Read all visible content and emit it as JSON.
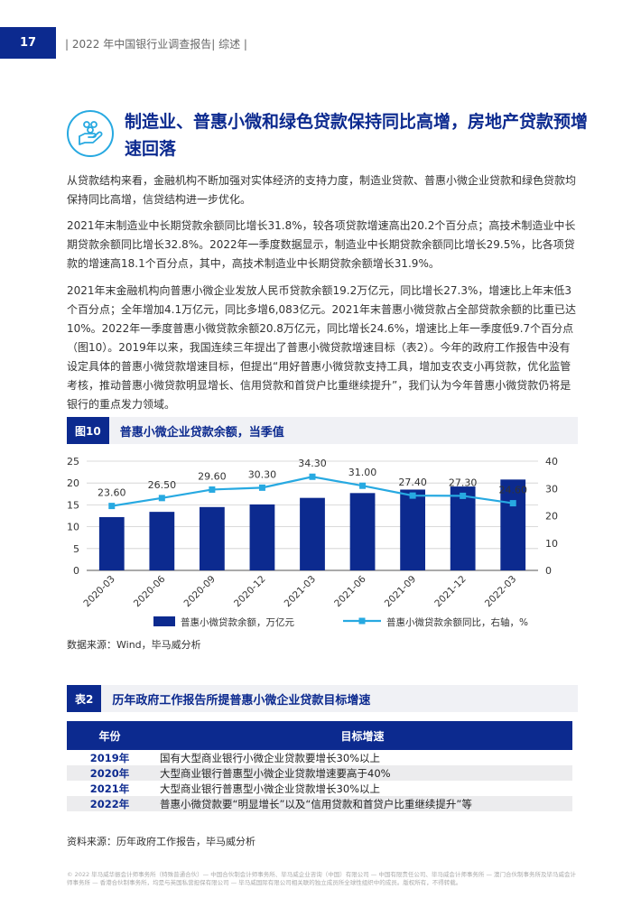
{
  "header": {
    "page_number": "17",
    "running_title": "| 2022 年中国银行业调查报告| 综述 |"
  },
  "section": {
    "icon": "hand-coins-icon",
    "title": "制造业、普惠小微和绿色贷款保持同比高增，房地产贷款预增速回落"
  },
  "paragraphs": [
    "从贷款结构来看，金融机构不断加强对实体经济的支持力度，制造业贷款、普惠小微企业贷款和绿色贷款均保持同比高增，信贷结构进一步优化。",
    "2021年末制造业中长期贷款余额同比增长31.8%，较各项贷款增速高出20.2个百分点；高技术制造业中长期贷款余额同比增长32.8%。2022年一季度数据显示，制造业中长期贷款余额同比增长29.5%，比各项贷款的增速高18.1个百分点，其中，高技术制造业中长期贷款余额增长31.9%。",
    "2021年末金融机构向普惠小微企业发放人民币贷款余额19.2万亿元，同比增长27.3%，增速比上年末低3个百分点；全年增加4.1万亿元，同比多增6,083亿元。2021年末普惠小微贷款占全部贷款余额的比重已达10%。2022年一季度普惠小微贷款余额20.8万亿元，同比增长24.6%，增速比上年一季度低9.7个百分点（图10）。2019年以来，我国连续三年提出了普惠小微贷款增速目标（表2）。今年的政府工作报告中没有设定具体的普惠小微贷款增速目标，但提出“用好普惠小微贷款支持工具，增加支农支小再贷款，优化监管考核，推动普惠小微贷款明显增长、信用贷款和首贷户比重继续提升”，我们认为今年普惠小微贷款仍将是银行的重点发力领域。"
  ],
  "figure": {
    "label": "图10",
    "title": "普惠小微企业贷款余额，当季值",
    "source": "数据来源：Wind，毕马威分析"
  },
  "chart_data": {
    "type": "bar",
    "categories": [
      "2020-03",
      "2020-06",
      "2020-09",
      "2020-12",
      "2021-03",
      "2021-06",
      "2021-09",
      "2021-12",
      "2022-03"
    ],
    "series": [
      {
        "name": "普惠小微贷款余额，万亿元",
        "type": "bar",
        "axis": "left",
        "color": "#0c2a8f",
        "values": [
          12.2,
          13.4,
          14.5,
          15.1,
          16.6,
          17.7,
          18.5,
          19.2,
          20.8
        ]
      },
      {
        "name": "普惠小微贷款余额同比，右轴，%",
        "type": "line",
        "axis": "right",
        "color": "#27a9e1",
        "values": [
          23.6,
          26.5,
          29.6,
          30.3,
          34.3,
          31.0,
          27.4,
          27.3,
          24.6
        ],
        "labels": [
          "23.60",
          "26.50",
          "29.60",
          "30.30",
          "34.30",
          "31.00",
          "27.40",
          "27.30",
          "24.60"
        ]
      }
    ],
    "y_left": {
      "range": [
        0,
        25
      ],
      "ticks": [
        "0",
        "5",
        "10",
        "15",
        "20",
        "25"
      ]
    },
    "y_right": {
      "range": [
        0,
        40
      ],
      "ticks": [
        "0",
        "10",
        "20",
        "30",
        "40"
      ]
    },
    "grid": true,
    "legend_position": "bottom"
  },
  "table": {
    "label": "表2",
    "title": "历年政府工作报告所提普惠小微企业贷款目标增速",
    "headers": [
      "年份",
      "目标增速"
    ],
    "rows": [
      [
        "2019年",
        "国有大型商业银行小微企业贷款要增长30%以上"
      ],
      [
        "2020年",
        "大型商业银行普惠型小微企业贷款增速要高于40%"
      ],
      [
        "2021年",
        "大型商业银行普惠型小微企业贷款增长30%以上"
      ],
      [
        "2022年",
        "普惠小微贷款要“明显增长”以及“信用贷款和首贷户比重继续提升”等"
      ]
    ],
    "source": "资料来源：历年政府工作报告，毕马威分析"
  },
  "footer": "© 2022 毕马威华振会计师事务所（特殊普通合伙）— 中国合伙制会计师事务所、毕马威企业咨询（中国）有限公司 — 中国有限责任公司、毕马威会计师事务所 — 澳门合伙制事务所及毕马威会计师事务所 — 香港合伙制事务所，均是与英国私营担保有限公司 — 毕马威国际有限公司相关联的独立成员所全球性组织中的成员。版权所有，不得转载。"
}
